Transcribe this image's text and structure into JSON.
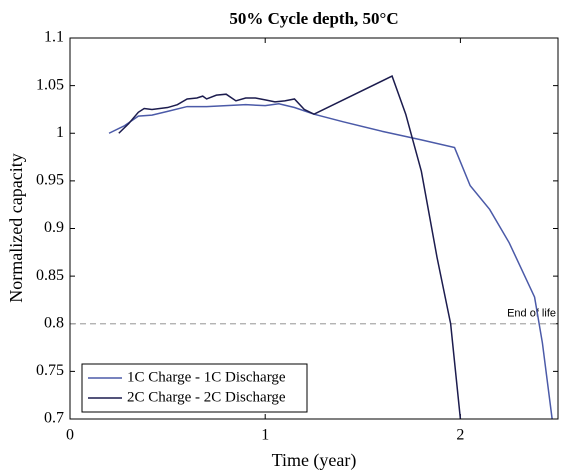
{
  "chart_data": {
    "type": "line",
    "title": "50% Cycle depth, 50°C",
    "x_label": "Time (year)",
    "y_label": "Normalized capacity",
    "xlim": [
      0,
      2.5
    ],
    "xticks": [
      0,
      1,
      2
    ],
    "ylim": [
      0.7,
      1.1
    ],
    "yticks": [
      0.7,
      0.75,
      0.8,
      0.85,
      0.9,
      0.95,
      1,
      1.05,
      1.1
    ],
    "reference_line": {
      "value": 0.8,
      "label": "End of life",
      "color": "#aaaaaa"
    },
    "legend_position": "lower left",
    "series": [
      {
        "name": "1C Charge - 1C Discharge",
        "color": "#4b5aa8",
        "x": [
          0.2,
          0.28,
          0.35,
          0.42,
          0.5,
          0.6,
          0.7,
          0.8,
          0.9,
          1.0,
          1.07,
          1.15,
          1.25,
          1.4,
          1.6,
          1.8,
          1.97,
          2.05,
          2.15,
          2.25,
          2.38,
          2.42,
          2.47
        ],
        "values": [
          1.0,
          1.008,
          1.018,
          1.019,
          1.023,
          1.028,
          1.028,
          1.029,
          1.03,
          1.029,
          1.031,
          1.027,
          1.02,
          1.012,
          1.002,
          0.993,
          0.985,
          0.945,
          0.92,
          0.885,
          0.828,
          0.78,
          0.7
        ]
      },
      {
        "name": "2C Charge - 2C Discharge",
        "color": "#1c1c4e",
        "x": [
          0.25,
          0.3,
          0.35,
          0.38,
          0.42,
          0.5,
          0.55,
          0.6,
          0.65,
          0.68,
          0.7,
          0.75,
          0.8,
          0.85,
          0.9,
          0.95,
          1.0,
          1.05,
          1.1,
          1.15,
          1.2,
          1.25,
          1.65,
          1.72,
          1.8,
          1.88,
          1.95,
          2.0
        ],
        "values": [
          1.0,
          1.01,
          1.022,
          1.026,
          1.025,
          1.027,
          1.03,
          1.036,
          1.037,
          1.039,
          1.036,
          1.04,
          1.041,
          1.034,
          1.037,
          1.037,
          1.035,
          1.033,
          1.034,
          1.036,
          1.025,
          1.02,
          1.06,
          1.02,
          0.96,
          0.87,
          0.8,
          0.7
        ]
      }
    ]
  }
}
